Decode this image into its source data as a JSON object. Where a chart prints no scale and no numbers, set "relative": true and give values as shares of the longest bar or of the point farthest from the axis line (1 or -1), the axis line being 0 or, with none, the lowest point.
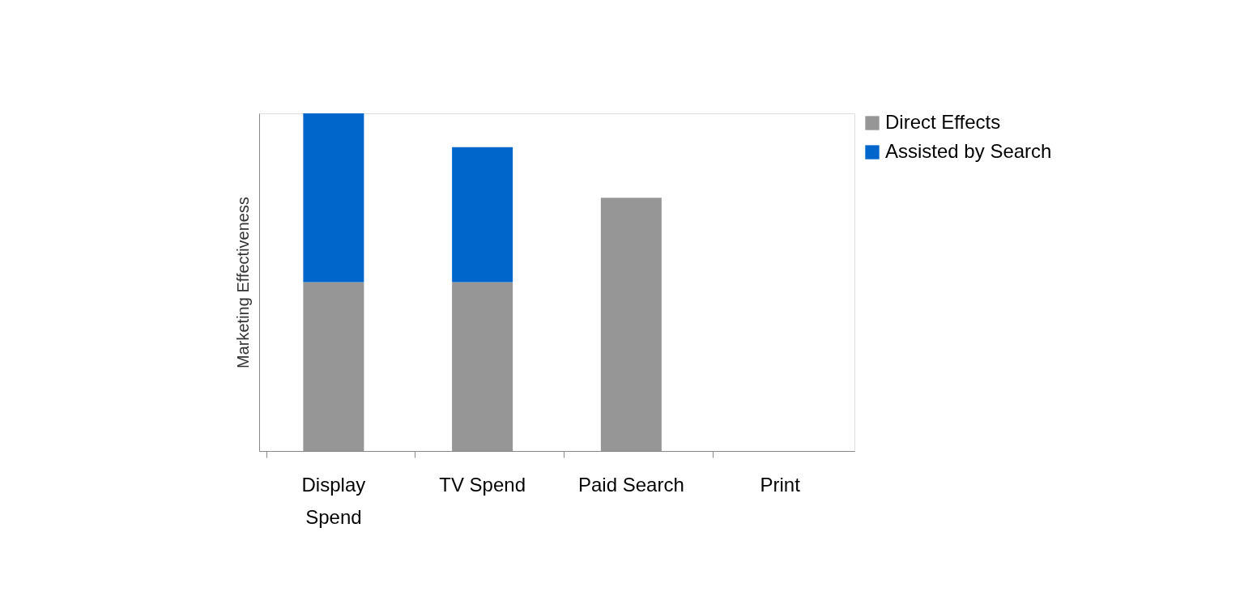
{
  "chart_data": {
    "type": "bar",
    "stacked": true,
    "relative": true,
    "ylabel": "Marketing Effectiveness",
    "categories": [
      "Display Spend",
      "TV Spend",
      "Paid Search",
      "Print"
    ],
    "series": [
      {
        "name": "Direct Effects",
        "color": "#969696",
        "values": [
          0.5,
          0.5,
          0.75,
          0
        ]
      },
      {
        "name": "Assisted by Search",
        "color": "#0066cc",
        "values": [
          0.5,
          0.4,
          0,
          0
        ]
      }
    ],
    "legend": "top right",
    "grid": false
  }
}
